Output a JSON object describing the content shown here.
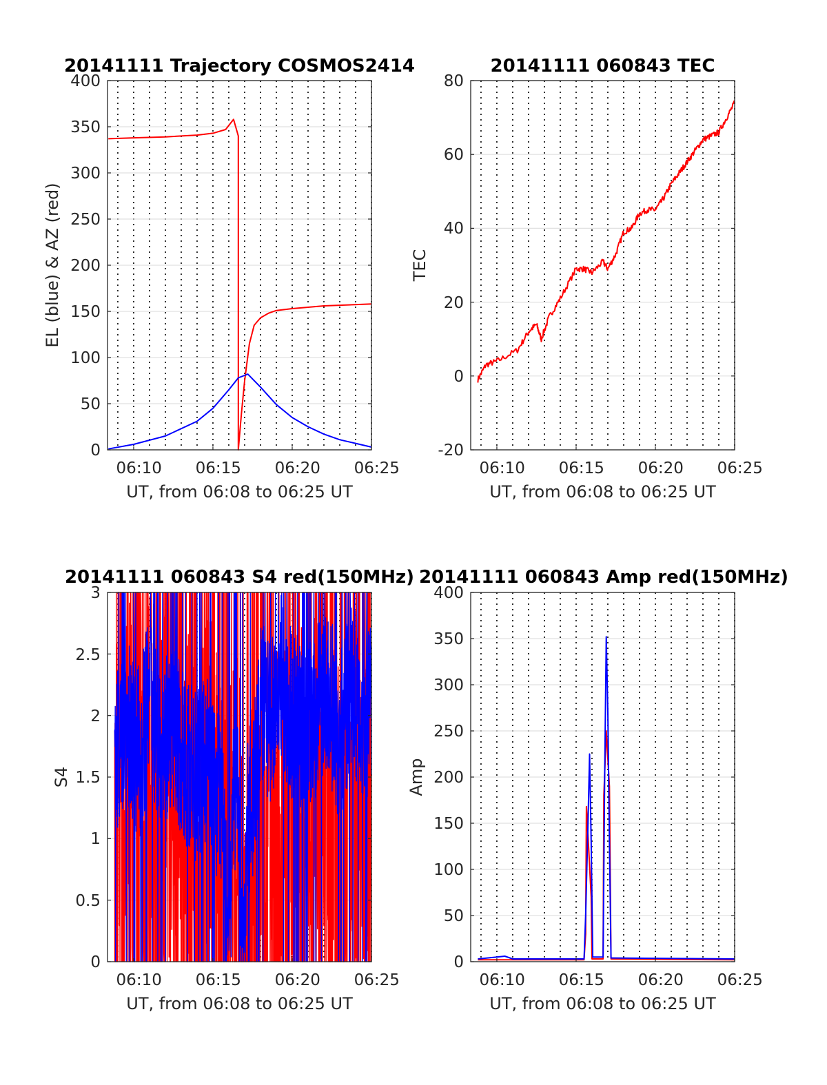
{
  "chart_data": [
    {
      "type": "line",
      "title": "20141111 Trajectory COSMOS2414",
      "xlabel": "UT, from 06:08 to 06:25 UT",
      "ylabel": "EL (blue) & AZ (red)",
      "xlim_minutes": [
        8.35,
        25.0
      ],
      "ylim": [
        0,
        400
      ],
      "xticks": [
        "06:10",
        "06:15",
        "06:20",
        "06:25"
      ],
      "yticks": [
        "0",
        "50",
        "100",
        "150",
        "200",
        "250",
        "300",
        "350",
        "400"
      ],
      "grid": "horizontal solid, vertical dotted every minute",
      "series": [
        {
          "color": "#ff0000",
          "x": [
            "06:08.4",
            "06:10",
            "06:12",
            "06:14",
            "06:15",
            "06:15.8",
            "06:16.3",
            "06:16.6",
            "06:16.6",
            "06:16.8",
            "06:17",
            "06:17.3",
            "06:17.6",
            "06:18",
            "06:18.5",
            "06:19",
            "06:20",
            "06:22",
            "06:25"
          ],
          "y": [
            337,
            338,
            339,
            341,
            343,
            347,
            358,
            340,
            0,
            40,
            75,
            115,
            135,
            143,
            148,
            151,
            153,
            156,
            158
          ]
        },
        {
          "color": "#0000ff",
          "x": [
            "06:08.4",
            "06:10",
            "06:12",
            "06:14",
            "06:15",
            "06:16",
            "06:16.6",
            "06:17.2",
            "06:18",
            "06:19",
            "06:20",
            "06:21",
            "06:22",
            "06:23",
            "06:24",
            "06:25"
          ],
          "y": [
            1,
            6,
            15,
            31,
            45,
            65,
            78,
            82,
            68,
            49,
            35,
            25,
            17,
            11,
            7,
            3
          ]
        }
      ]
    },
    {
      "type": "line",
      "title": "20141111 060843 TEC",
      "xlabel": "UT, from 06:08 to 06:25 UT",
      "ylabel": "TEC",
      "xlim_minutes": [
        8.35,
        25.0
      ],
      "ylim": [
        -20,
        80
      ],
      "xticks": [
        "06:10",
        "06:15",
        "06:20",
        "06:25"
      ],
      "yticks": [
        "-20",
        "0",
        "20",
        "40",
        "60",
        "80"
      ],
      "grid": "horizontal solid, vertical dotted every minute",
      "series": [
        {
          "color": "#ff0000",
          "x": [
            "06:08.8",
            "06:09.3",
            "06:10",
            "06:11.3",
            "06:12",
            "06:12.5",
            "06:12.8",
            "06:13.3",
            "06:14",
            "06:15",
            "06:15.5",
            "06:16",
            "06:16.7",
            "06:17",
            "06:17.5",
            "06:18",
            "06:18.5",
            "06:19",
            "06:19.5",
            "06:20",
            "06:20.5",
            "06:21",
            "06:21.5",
            "06:22",
            "06:22.5",
            "06:23",
            "06:23.5",
            "06:24",
            "06:24.5",
            "06:25"
          ],
          "y": [
            -1,
            3,
            4,
            7,
            12,
            14,
            10,
            16,
            21,
            29,
            29,
            28,
            31,
            29,
            33,
            39,
            40,
            44,
            45,
            45,
            48,
            52,
            55,
            58,
            61,
            64,
            65,
            66,
            70,
            74
          ]
        }
      ]
    },
    {
      "type": "line",
      "title": "20141111 060843 S4 red(150MHz)",
      "xlabel": "UT, from 06:08 to 06:25 UT",
      "ylabel": "S4",
      "xlim_minutes": [
        8.35,
        25.0
      ],
      "ylim": [
        0,
        3
      ],
      "xticks": [
        "06:10",
        "06:15",
        "06:20",
        "06:25"
      ],
      "yticks": [
        "0",
        "0.5",
        "1",
        "1.5",
        "2",
        "2.5",
        "3"
      ],
      "grid": "horizontal solid, vertical dotted every minute",
      "series": [
        {
          "color": "#ff0000",
          "x": [
            "06:08.8",
            "06:09.5",
            "06:10.3",
            "06:11",
            "06:11.8",
            "06:12.5",
            "06:13.3",
            "06:14",
            "06:14.8",
            "06:15.2",
            "06:15.6",
            "06:16",
            "06:16.5",
            "06:16.9",
            "06:17.3",
            "06:17.8",
            "06:18.5",
            "06:19.2",
            "06:20",
            "06:20.8",
            "06:21.5",
            "06:22.3",
            "06:23",
            "06:23.8",
            "06:24.5",
            "06:25"
          ],
          "y": [
            1.2,
            1.6,
            1.3,
            1.5,
            1.2,
            1.4,
            1.1,
            0.9,
            1.3,
            1.0,
            0.5,
            0.9,
            1.1,
            0.4,
            0.6,
            0.9,
            1.2,
            1.0,
            1.1,
            1.2,
            1.3,
            1.1,
            1.2,
            1.3,
            1.0,
            1.2
          ]
        },
        {
          "color": "#0000ff",
          "x": [
            "06:08.8",
            "06:09.5",
            "06:10.3",
            "06:11",
            "06:11.8",
            "06:12.5",
            "06:13.3",
            "06:14",
            "06:14.8",
            "06:15.2",
            "06:15.6",
            "06:16",
            "06:16.3",
            "06:16.6",
            "06:16.9",
            "06:17.2",
            "06:17.6",
            "06:18",
            "06:18.6",
            "06:19.3",
            "06:20",
            "06:20.8",
            "06:21.5",
            "06:22.3",
            "06:23",
            "06:23.8",
            "06:24.5",
            "06:25"
          ],
          "y": [
            1.6,
            2.0,
            1.7,
            2.1,
            1.8,
            1.9,
            1.6,
            1.5,
            1.7,
            1.4,
            1.3,
            0.2,
            1.3,
            1.2,
            0.15,
            1.1,
            1.4,
            2.1,
            1.9,
            2.3,
            2.0,
            1.9,
            2.0,
            2.2,
            1.8,
            2.3,
            1.9,
            2.1
          ]
        }
      ]
    },
    {
      "type": "line",
      "title": "20141111 060843 Amp red(150MHz)",
      "xlabel": "UT, from 06:08 to 06:25 UT",
      "ylabel": "Amp",
      "xlim_minutes": [
        8.35,
        25.0
      ],
      "ylim": [
        0,
        400
      ],
      "xticks": [
        "06:10",
        "06:15",
        "06:20",
        "06:25"
      ],
      "yticks": [
        "0",
        "50",
        "100",
        "150",
        "200",
        "250",
        "300",
        "350",
        "400"
      ],
      "grid": "horizontal solid, vertical dotted every minute",
      "series": [
        {
          "color": "#ff0000",
          "x": [
            "06:08.8",
            "06:15.5",
            "06:15.6",
            "06:15.65",
            "06:15.8",
            "06:15.95",
            "06:16.0",
            "06:16.7",
            "06:16.75",
            "06:16.9",
            "06:17.1",
            "06:17.2",
            "06:25"
          ],
          "y": [
            2,
            2,
            30,
            168,
            120,
            70,
            3,
            3,
            180,
            250,
            190,
            3,
            2
          ]
        },
        {
          "color": "#0000ff",
          "x": [
            "06:08.8",
            "06:10",
            "06:10.5",
            "06:11",
            "06:15.5",
            "06:15.6",
            "06:15.75",
            "06:15.85",
            "06:15.95",
            "06:16.05",
            "06:16.7",
            "06:16.8",
            "06:16.9",
            "06:17.0",
            "06:17.1",
            "06:17.2",
            "06:25"
          ],
          "y": [
            3,
            5,
            6,
            3,
            3,
            50,
            150,
            225,
            130,
            5,
            5,
            200,
            352,
            270,
            130,
            4,
            3
          ]
        }
      ]
    }
  ]
}
